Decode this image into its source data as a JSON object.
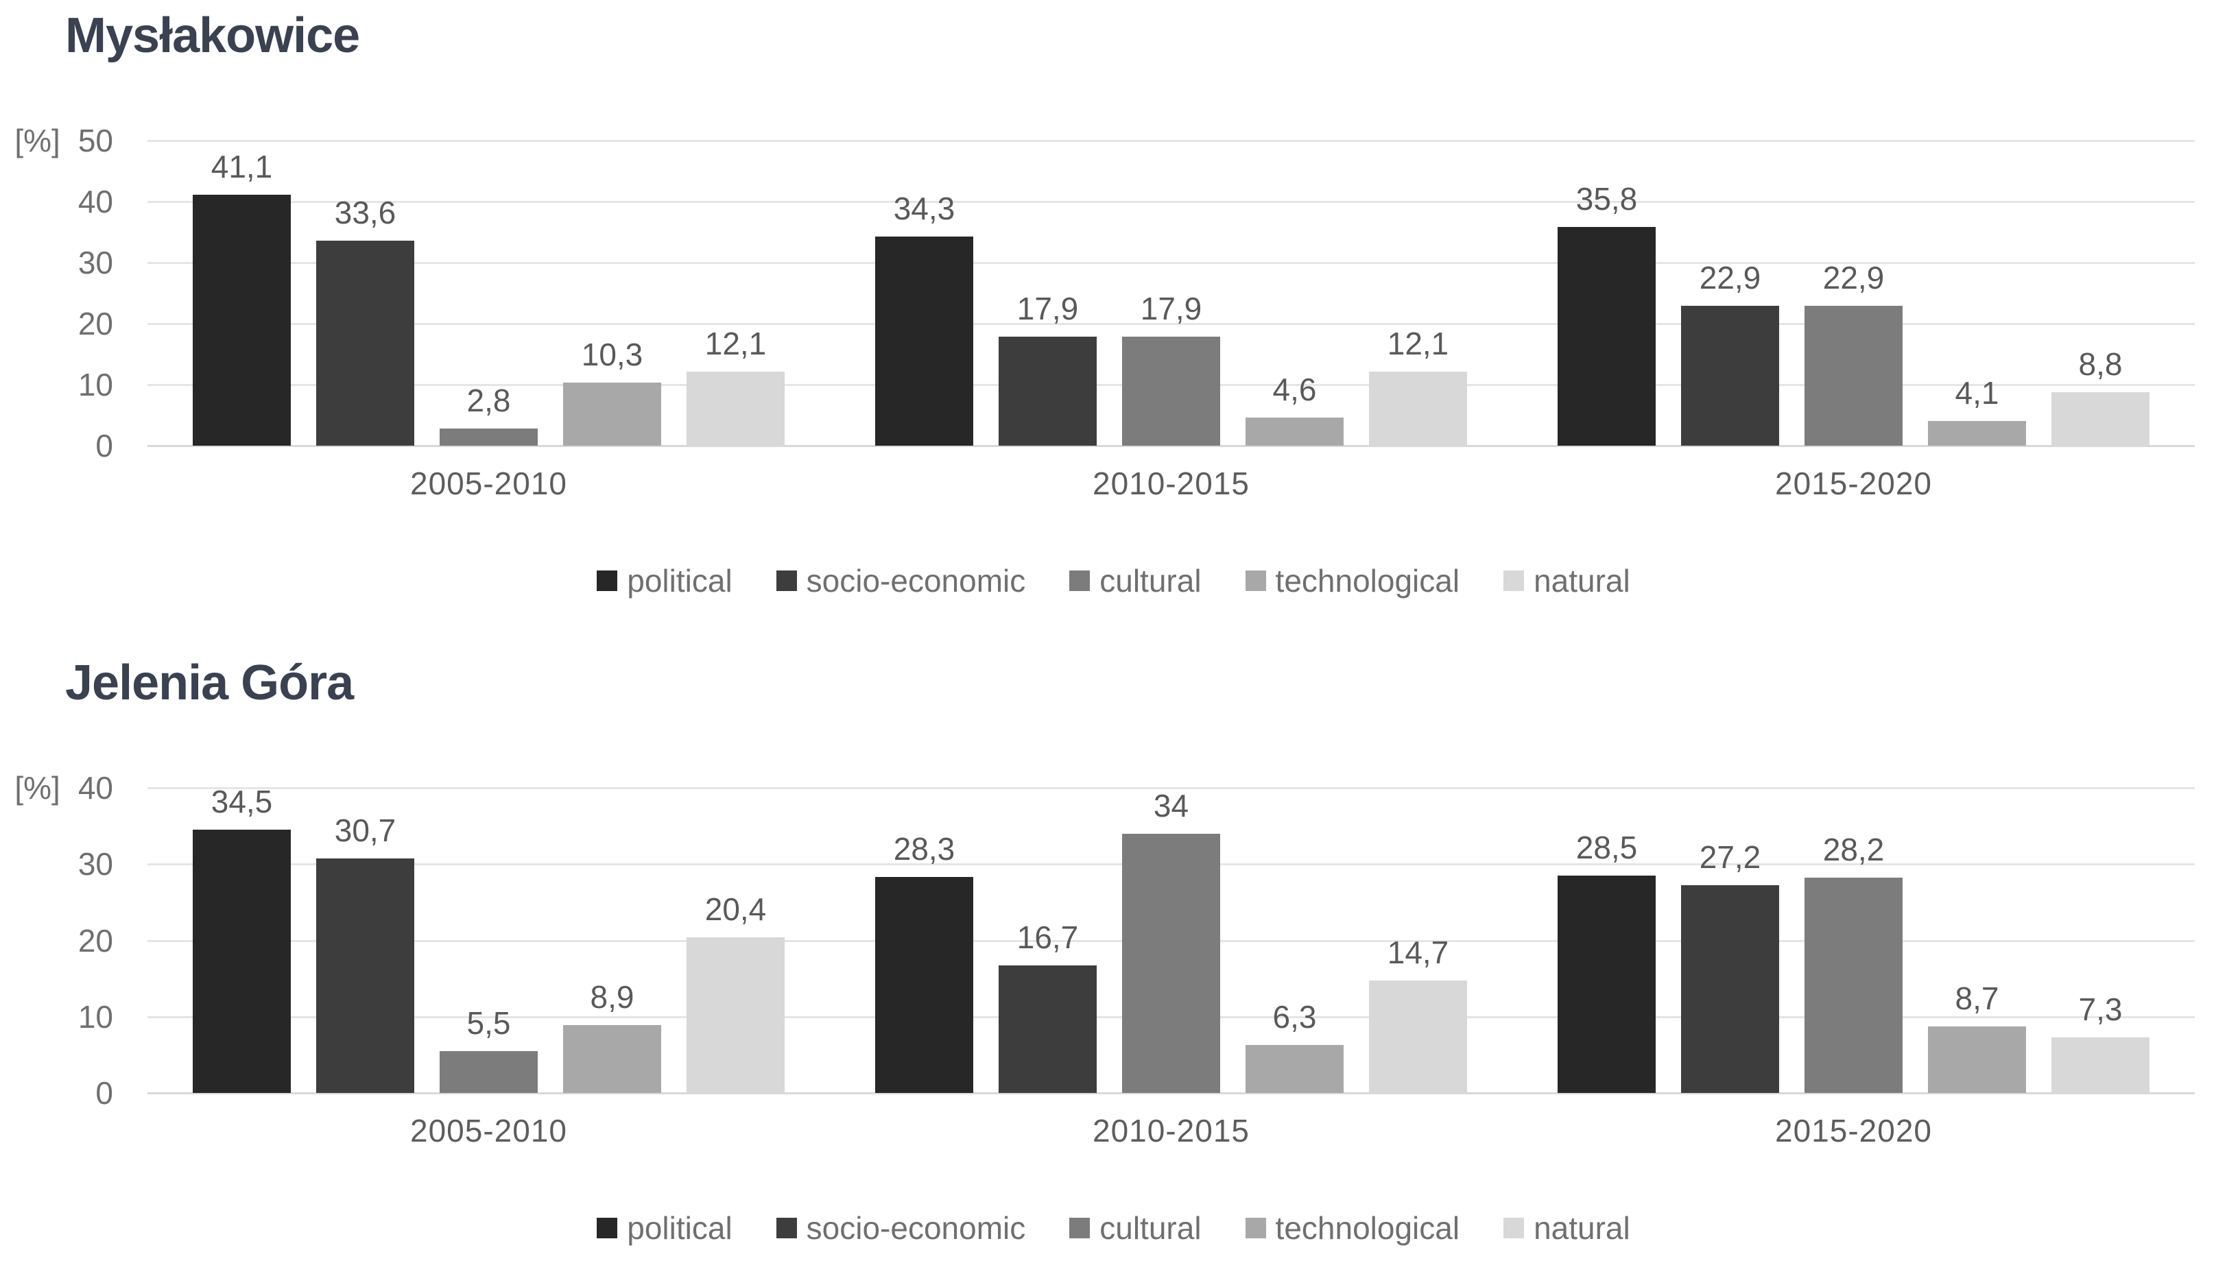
{
  "page": {
    "background": "#ffffff"
  },
  "chart_data": [
    {
      "type": "bar",
      "title": "Mysłakowice",
      "unit": "[%]",
      "ylim": [
        0,
        50
      ],
      "yticks": [
        50,
        40,
        30,
        20,
        10,
        0
      ],
      "grid": true,
      "legend_position": "bottom",
      "categories": [
        "2005-2010",
        "2010-2015",
        "2015-2020"
      ],
      "series": [
        {
          "name": "political",
          "color": "#272727",
          "values": [
            41.1,
            34.3,
            35.8
          ],
          "labels": [
            "41,1",
            "34,3",
            "35,8"
          ]
        },
        {
          "name": "socio-economic",
          "color": "#3d3d3d",
          "values": [
            33.6,
            17.9,
            22.9
          ],
          "labels": [
            "33,6",
            "17,9",
            "22,9"
          ]
        },
        {
          "name": "cultural",
          "color": "#7c7c7c",
          "values": [
            2.8,
            17.9,
            22.9
          ],
          "labels": [
            "2,8",
            "17,9",
            "22,9"
          ]
        },
        {
          "name": "technological",
          "color": "#a8a8a8",
          "values": [
            10.3,
            4.6,
            4.1
          ],
          "labels": [
            "10,3",
            "4,6",
            "4,1"
          ]
        },
        {
          "name": "natural",
          "color": "#d8d8d8",
          "values": [
            12.1,
            12.1,
            8.8
          ],
          "labels": [
            "12,1",
            "12,1",
            "8,8"
          ]
        }
      ]
    },
    {
      "type": "bar",
      "title": "Jelenia Góra",
      "unit": "[%]",
      "ylim": [
        0,
        40
      ],
      "yticks": [
        40,
        30,
        20,
        10,
        0
      ],
      "grid": true,
      "legend_position": "bottom",
      "categories": [
        "2005-2010",
        "2010-2015",
        "2015-2020"
      ],
      "series": [
        {
          "name": "political",
          "color": "#272727",
          "values": [
            34.5,
            28.3,
            28.5
          ],
          "labels": [
            "34,5",
            "28,3",
            "28,5"
          ]
        },
        {
          "name": "socio-economic",
          "color": "#3d3d3d",
          "values": [
            30.7,
            16.7,
            27.2
          ],
          "labels": [
            "30,7",
            "16,7",
            "27,2"
          ]
        },
        {
          "name": "cultural",
          "color": "#7c7c7c",
          "values": [
            5.5,
            34,
            28.2
          ],
          "labels": [
            "5,5",
            "34",
            "28,2"
          ]
        },
        {
          "name": "technological",
          "color": "#a8a8a8",
          "values": [
            8.9,
            6.3,
            8.7
          ],
          "labels": [
            "8,9",
            "6,3",
            "8,7"
          ]
        },
        {
          "name": "natural",
          "color": "#d8d8d8",
          "values": [
            20.4,
            14.7,
            7.3
          ],
          "labels": [
            "20,4",
            "14,7",
            "7,3"
          ]
        }
      ]
    }
  ]
}
